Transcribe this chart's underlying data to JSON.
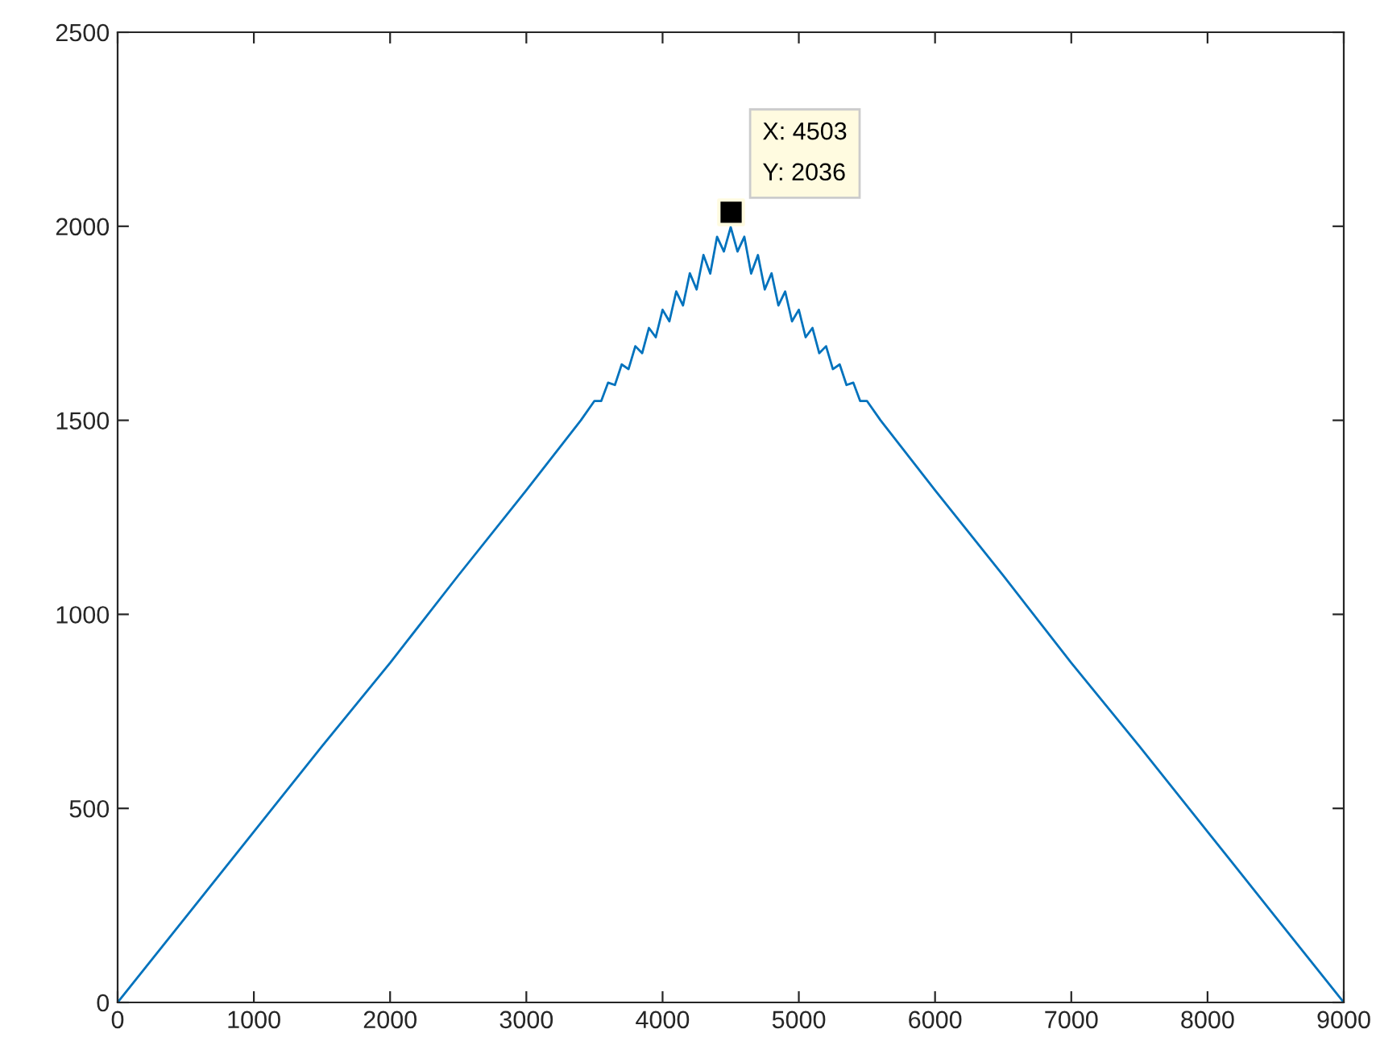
{
  "chart_data": {
    "type": "line",
    "xlim": [
      0,
      9000
    ],
    "ylim": [
      0,
      2500
    ],
    "xticks": [
      0,
      1000,
      2000,
      3000,
      4000,
      5000,
      6000,
      7000,
      8000,
      9000
    ],
    "yticks": [
      0,
      500,
      1000,
      1500,
      2000,
      2500
    ],
    "grid": false,
    "legend": false,
    "series": [
      {
        "color": "#0072bd",
        "line_style": "solid",
        "marker": "none",
        "x": [
          0,
          500,
          1000,
          1500,
          2000,
          2500,
          3000,
          3400,
          3500,
          3550,
          3600,
          3650,
          3700,
          3750,
          3800,
          3850,
          3900,
          3950,
          4000,
          4050,
          4100,
          4150,
          4200,
          4250,
          4300,
          4350,
          4400,
          4450,
          4500,
          4550,
          4600,
          4650,
          4700,
          4750,
          4800,
          4850,
          4900,
          4950,
          5000,
          5050,
          5100,
          5150,
          5200,
          5250,
          5300,
          5350,
          5400,
          5450,
          5500,
          5600,
          6000,
          6500,
          7000,
          7500,
          8000,
          8500,
          9000
        ],
        "values": [
          0,
          220,
          440,
          660,
          875,
          1100,
          1320,
          1500,
          1550,
          1550,
          1597,
          1591,
          1644,
          1632,
          1691,
          1673,
          1738,
          1714,
          1785,
          1755,
          1832,
          1796,
          1879,
          1837,
          1926,
          1878,
          1973,
          1935,
          1998,
          1935,
          1973,
          1878,
          1926,
          1837,
          1879,
          1796,
          1832,
          1755,
          1785,
          1714,
          1738,
          1673,
          1691,
          1632,
          1644,
          1591,
          1597,
          1550,
          1550,
          1500,
          1320,
          1100,
          875,
          660,
          440,
          220,
          0
        ]
      },
      {
        "type": "scatter",
        "color": "#000000",
        "marker": "square",
        "x": [
          4503
        ],
        "values": [
          2036
        ]
      }
    ],
    "annotations": [
      {
        "text": "X: 4503\nY: 2036",
        "x": 4503,
        "y": 2036
      }
    ]
  }
}
